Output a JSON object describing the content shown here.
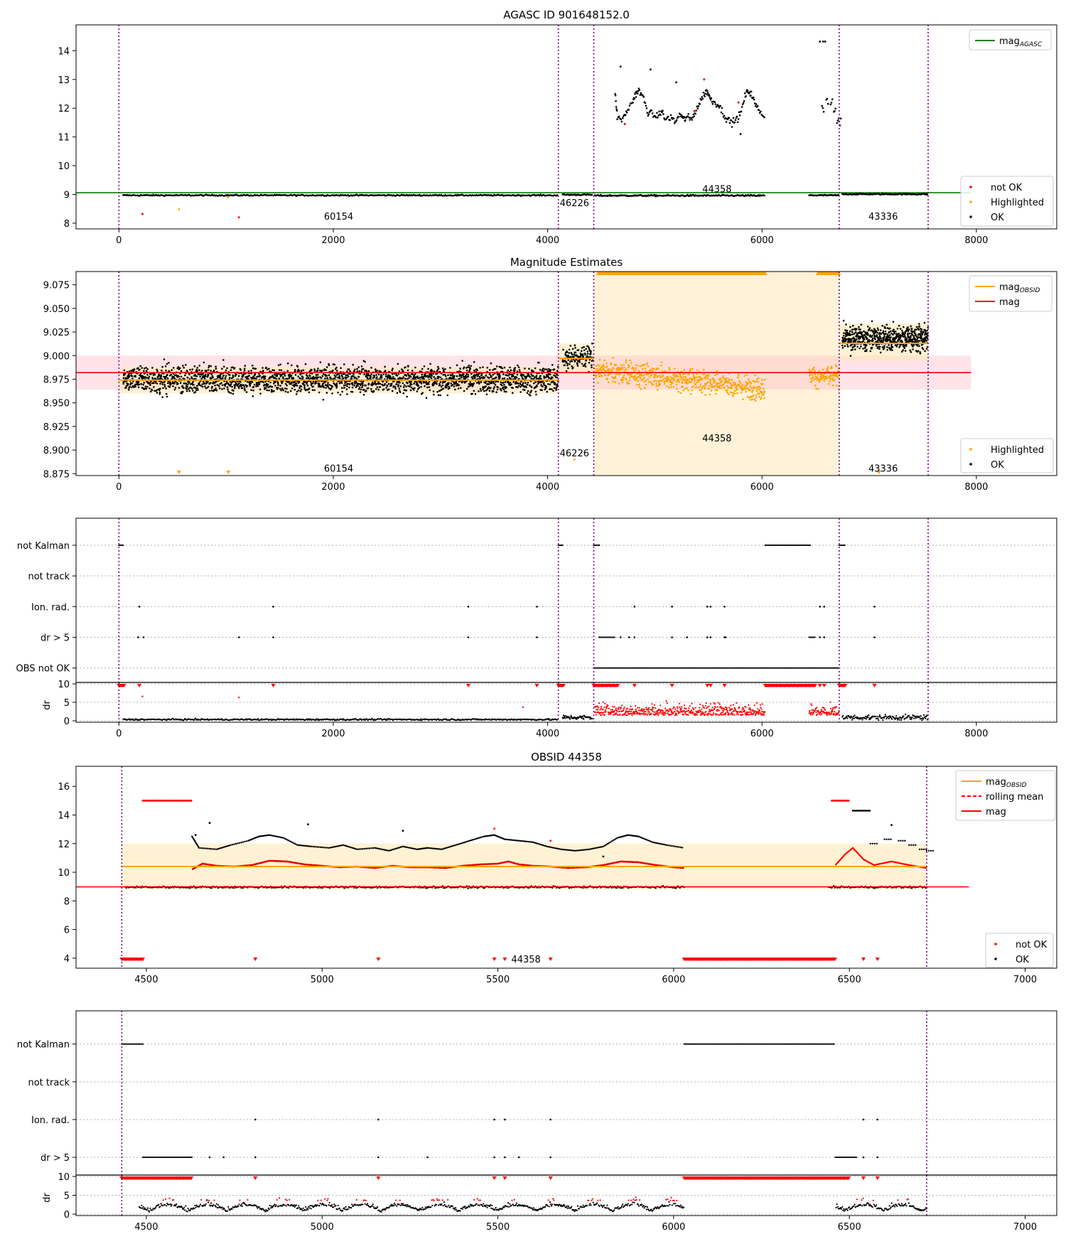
{
  "figure": {
    "titles": {
      "top": "AGASC ID 901648152.0",
      "mag": "Magnitude Estimates",
      "obsid": "OBSID 44358"
    },
    "colors": {
      "ok": "#000000",
      "not_ok": "#ff0000",
      "highlighted": "#ffa500",
      "agasc": "#008000",
      "obsid": "#ffa500",
      "mag": "#ff0000",
      "boundary": "#800080",
      "grid": "#b0b0b0",
      "mag_band": "#ffc0cb",
      "obs_band": "#ffe7b8"
    }
  },
  "chart_data": [
    {
      "id": "agasc",
      "type": "scatter",
      "title": "AGASC ID 901648152.0",
      "xlim": [
        -400,
        8750
      ],
      "ylim": [
        7.8,
        14.9
      ],
      "xticks": [
        0,
        2000,
        4000,
        6000,
        8000
      ],
      "yticks": [
        8,
        9,
        10,
        11,
        12,
        13,
        14
      ],
      "boundaries": [
        0,
        4100,
        4430,
        6720,
        7550
      ],
      "obsid_labels": [
        {
          "text": "60154",
          "x": 2050,
          "y": 8.25
        },
        {
          "text": "46226",
          "x": 4250,
          "y": 8.72
        },
        {
          "text": "44358",
          "x": 5580,
          "y": 9.2
        },
        {
          "text": "43336",
          "x": 7130,
          "y": 8.25
        }
      ],
      "lines": [
        {
          "name": "magAGASC",
          "label_base": "mag",
          "label_sub": "AGASC",
          "color": "#008000",
          "x": [
            -400,
            7950
          ],
          "y": [
            9.06,
            9.06
          ]
        }
      ],
      "segments_ok": [
        {
          "x0": 40,
          "x1": 4100,
          "y": 8.97,
          "spread": 0.05,
          "n": 420
        },
        {
          "x0": 4140,
          "x1": 4420,
          "y": 8.99,
          "spread": 0.05,
          "n": 40
        },
        {
          "x0": 4440,
          "x1": 6030,
          "y": 8.96,
          "spread": 0.06,
          "n": 200
        },
        {
          "x0": 6440,
          "x1": 6720,
          "y": 8.97,
          "spread": 0.05,
          "n": 40
        },
        {
          "x0": 6750,
          "x1": 7550,
          "y": 9.01,
          "spread": 0.05,
          "n": 110
        }
      ],
      "bright_curve": [
        [
          4630,
          12.5
        ],
        [
          4650,
          11.7
        ],
        [
          4700,
          11.6
        ],
        [
          4740,
          11.9
        ],
        [
          4790,
          12.2
        ],
        [
          4820,
          12.5
        ],
        [
          4850,
          12.6
        ],
        [
          4890,
          12.4
        ],
        [
          4930,
          11.9
        ],
        [
          4970,
          11.8
        ],
        [
          5020,
          11.7
        ],
        [
          5060,
          11.9
        ],
        [
          5100,
          11.6
        ],
        [
          5150,
          11.7
        ],
        [
          5190,
          11.5
        ],
        [
          5230,
          11.8
        ],
        [
          5270,
          11.6
        ],
        [
          5300,
          11.7
        ],
        [
          5340,
          11.6
        ],
        [
          5380,
          11.9
        ],
        [
          5420,
          12.2
        ],
        [
          5460,
          12.5
        ],
        [
          5490,
          12.6
        ],
        [
          5520,
          12.3
        ],
        [
          5560,
          12.2
        ],
        [
          5600,
          12.1
        ],
        [
          5640,
          11.8
        ],
        [
          5680,
          11.6
        ],
        [
          5720,
          11.5
        ],
        [
          5760,
          11.6
        ],
        [
          5800,
          11.8
        ],
        [
          5840,
          12.4
        ],
        [
          5870,
          12.6
        ],
        [
          5900,
          12.5
        ],
        [
          5940,
          12.1
        ],
        [
          5980,
          11.9
        ],
        [
          6030,
          11.7
        ]
      ],
      "bright_tail": [
        [
          6560,
          12.0
        ],
        [
          6600,
          12.3
        ],
        [
          6640,
          12.2
        ],
        [
          6670,
          11.9
        ],
        [
          6700,
          11.6
        ],
        [
          6720,
          11.5
        ]
      ],
      "extra_ok": [
        [
          4680,
          13.45
        ],
        [
          4960,
          13.35
        ],
        [
          5200,
          12.9
        ],
        [
          5800,
          11.1
        ],
        [
          6540,
          14.32
        ],
        [
          6570,
          14.32
        ],
        [
          6590,
          14.32
        ]
      ],
      "not_ok": [
        [
          220,
          8.32
        ],
        [
          1120,
          8.2
        ],
        [
          4720,
          11.45
        ],
        [
          5370,
          11.9
        ],
        [
          5460,
          13.0
        ],
        [
          5780,
          12.2
        ]
      ],
      "highlighted": [
        [
          560,
          8.48
        ],
        [
          1020,
          8.9
        ]
      ],
      "legend": [
        "not OK",
        "Highlighted",
        "OK"
      ]
    },
    {
      "id": "mag",
      "type": "scatter",
      "title": "Magnitude Estimates",
      "xlim": [
        -400,
        8750
      ],
      "ylim": [
        8.873,
        9.089
      ],
      "xticks": [
        0,
        2000,
        4000,
        6000,
        8000
      ],
      "yticks": [
        8.875,
        8.9,
        8.925,
        8.95,
        8.975,
        9.0,
        9.025,
        9.05,
        9.075
      ],
      "ytick_labels": [
        "8.875",
        "8.900",
        "8.925",
        "8.950",
        "8.975",
        "9.000",
        "9.025",
        "9.050",
        "9.075"
      ],
      "boundaries": [
        0,
        4100,
        4430,
        6720,
        7550
      ],
      "obsid_labels": [
        {
          "text": "60154",
          "x": 2050,
          "y": 8.881
        },
        {
          "text": "46226",
          "x": 4250,
          "y": 8.897
        },
        {
          "text": "44358",
          "x": 5580,
          "y": 8.913
        },
        {
          "text": "43336",
          "x": 7130,
          "y": 8.881
        }
      ],
      "mag_value": 8.982,
      "mag_band": [
        8.964,
        9.0
      ],
      "obs_band_x": [
        4430,
        6720
      ],
      "obsid_steps": [
        {
          "x0": 0,
          "x1": 4100,
          "y": 8.974,
          "band": [
            8.96,
            8.988
          ]
        },
        {
          "x0": 4100,
          "x1": 4430,
          "y": 8.997,
          "band": [
            8.98,
            9.013
          ]
        },
        {
          "x0": 6720,
          "x1": 7550,
          "y": 9.013,
          "band": [
            8.995,
            9.034
          ]
        }
      ],
      "clipped_top_x": [
        [
          4470,
          6030
        ],
        [
          6520,
          6720
        ]
      ],
      "segments": [
        {
          "kind": "ok",
          "x0": 40,
          "x1": 4100,
          "center": 8.975,
          "spread": 0.016,
          "n": 2200
        },
        {
          "kind": "ok",
          "x0": 4140,
          "x1": 4420,
          "center": 8.998,
          "spread": 0.013,
          "n": 140
        },
        {
          "kind": "hl",
          "x0": 4440,
          "x1": 6030,
          "center": 8.985,
          "trend": -0.02,
          "spread": 0.014,
          "n": 620
        },
        {
          "kind": "hl",
          "x0": 6440,
          "x1": 6720,
          "center": 8.978,
          "trend": 0.0,
          "spread": 0.012,
          "n": 110
        },
        {
          "kind": "ok",
          "x0": 6750,
          "x1": 7550,
          "center": 9.018,
          "spread": 0.015,
          "n": 620
        }
      ],
      "highlighted_outliers": [
        [
          560,
          8.875
        ],
        [
          1020,
          8.878
        ],
        [
          7090,
          8.876
        ],
        [
          7090,
          8.88
        ],
        [
          4250,
          8.89
        ]
      ],
      "lines": [
        {
          "name": "magOBSID",
          "label_base": "mag",
          "label_sub": "OBSID",
          "color": "#ffa500"
        },
        {
          "name": "mag",
          "label_base": "mag",
          "label_sub": "",
          "color": "#ff0000"
        }
      ],
      "legend": [
        "Highlighted",
        "OK"
      ]
    },
    {
      "id": "flags",
      "type": "scatter",
      "xlim": [
        -400,
        8750
      ],
      "categories": [
        "not Kalman",
        "not track",
        "Ion. rad.",
        "dr > 5",
        "OBS not OK"
      ],
      "boundaries": [
        0,
        4100,
        4430,
        6720,
        7550
      ],
      "runs": {
        "not Kalman": [
          [
            0,
            50
          ],
          [
            4100,
            4150
          ],
          [
            4430,
            4490
          ],
          [
            6030,
            6460
          ],
          [
            6720,
            6780
          ]
        ],
        "not track": [],
        "Ion. rad.": [
          [
            190
          ],
          [
            1440
          ],
          [
            3260
          ],
          [
            3900
          ],
          [
            4810
          ],
          [
            5160
          ],
          [
            5490
          ],
          [
            5520
          ],
          [
            5650
          ],
          [
            6540
          ],
          [
            6580
          ],
          [
            7050
          ]
        ],
        "dr > 5": [
          [
            180
          ],
          [
            230
          ],
          [
            1120
          ],
          [
            1440
          ],
          [
            3260
          ],
          [
            3900
          ],
          [
            4480,
            4630
          ],
          [
            4680
          ],
          [
            4760
          ],
          [
            4810
          ],
          [
            5160
          ],
          [
            5300
          ],
          [
            5490
          ],
          [
            5520
          ],
          [
            5650
          ],
          [
            5660
          ],
          [
            6440,
            6500
          ],
          [
            6540
          ],
          [
            6580
          ],
          [
            7050
          ]
        ],
        "OBS not OK": [
          [
            4430,
            6720
          ]
        ]
      }
    },
    {
      "id": "dr_full",
      "type": "scatter",
      "ylabel": "dr",
      "xlim": [
        -400,
        8750
      ],
      "ylim": [
        0,
        10
      ],
      "yticks": [
        0,
        5,
        10
      ],
      "xticks": [
        0,
        2000,
        4000,
        6000,
        8000
      ],
      "boundaries": [
        0,
        4100,
        4430,
        6720,
        7550
      ],
      "ok_segments": [
        [
          40,
          4100,
          0.35,
          0.2,
          500
        ],
        [
          4140,
          4420,
          0.9,
          0.6,
          60
        ],
        [
          6750,
          7550,
          0.9,
          0.7,
          140
        ]
      ],
      "red_segments": [
        [
          4440,
          6030,
          1.5,
          1.4,
          520
        ],
        [
          6440,
          6720,
          1.5,
          1.3,
          90
        ]
      ],
      "red_outliers": [
        [
          220,
          6.6
        ],
        [
          1120,
          6.3
        ],
        [
          3770,
          3.7
        ]
      ],
      "clipped": [
        [
          0,
          50
        ],
        [
          190
        ],
        [
          1440
        ],
        [
          3260
        ],
        [
          3900
        ],
        [
          4100,
          4150
        ],
        [
          4430,
          4660
        ],
        [
          4810
        ],
        [
          5160
        ],
        [
          5490
        ],
        [
          5520
        ],
        [
          5650
        ],
        [
          6030,
          6500
        ],
        [
          6540
        ],
        [
          6580
        ],
        [
          6720,
          6780
        ],
        [
          7050
        ]
      ]
    },
    {
      "id": "obsid",
      "type": "line",
      "title": "OBSID 44358",
      "xlim": [
        4300,
        7090
      ],
      "ylim": [
        3.3,
        17.4
      ],
      "xticks": [
        4500,
        5000,
        5500,
        6000,
        6500,
        7000
      ],
      "yticks": [
        4,
        6,
        8,
        10,
        12,
        14,
        16
      ],
      "boundaries": [
        4430,
        6720
      ],
      "obsid_label": {
        "text": "44358",
        "x": 5580,
        "y": 3.95
      },
      "mag_value": 8.98,
      "mag_band": [
        8.96,
        9.0
      ],
      "obsid_value": 10.4,
      "obs_band": [
        8.8,
        12.0
      ],
      "obsid_band_x": [
        4430,
        6720
      ],
      "mag_line_x": [
        4300,
        6840
      ],
      "rolling_mean": [
        [
          4630,
          10.2
        ],
        [
          4660,
          10.6
        ],
        [
          4700,
          10.45
        ],
        [
          4750,
          10.4
        ],
        [
          4800,
          10.5
        ],
        [
          4850,
          10.8
        ],
        [
          4900,
          10.75
        ],
        [
          4950,
          10.55
        ],
        [
          5000,
          10.45
        ],
        [
          5050,
          10.35
        ],
        [
          5100,
          10.4
        ],
        [
          5150,
          10.3
        ],
        [
          5200,
          10.45
        ],
        [
          5250,
          10.35
        ],
        [
          5300,
          10.35
        ],
        [
          5350,
          10.3
        ],
        [
          5400,
          10.45
        ],
        [
          5450,
          10.55
        ],
        [
          5500,
          10.6
        ],
        [
          5530,
          10.75
        ],
        [
          5560,
          10.55
        ],
        [
          5600,
          10.45
        ],
        [
          5650,
          10.4
        ],
        [
          5700,
          10.3
        ],
        [
          5750,
          10.35
        ],
        [
          5800,
          10.5
        ],
        [
          5850,
          10.75
        ],
        [
          5900,
          10.7
        ],
        [
          5950,
          10.5
        ],
        [
          6000,
          10.35
        ],
        [
          6030,
          10.3
        ]
      ],
      "rolling_mean_tail": [
        [
          6460,
          10.5
        ],
        [
          6490,
          11.3
        ],
        [
          6510,
          11.7
        ],
        [
          6540,
          10.9
        ],
        [
          6570,
          10.5
        ],
        [
          6620,
          10.75
        ],
        [
          6670,
          10.5
        ],
        [
          6720,
          10.3
        ]
      ],
      "legend": [
        {
          "label_base": "mag",
          "label_sub": "OBSID",
          "style": "solid",
          "color": "#ffa500"
        },
        {
          "label_base": "rolling mean",
          "label_sub": "",
          "style": "dashed",
          "color": "#ff0000"
        },
        {
          "label_base": "mag",
          "label_sub": "",
          "style": "solid",
          "color": "#ff0000"
        }
      ],
      "legend_points": [
        "not OK",
        "OK"
      ],
      "red_clipped": [
        [
          4430,
          4490
        ],
        [
          4810
        ],
        [
          5160
        ],
        [
          5490
        ],
        [
          5520
        ],
        [
          5650
        ],
        [
          6030,
          6460
        ],
        [
          6540
        ],
        [
          6580
        ]
      ],
      "red_top_runs": [
        [
          4490,
          4630
        ],
        [
          6450,
          6500
        ]
      ],
      "black_top_run": [
        6510,
        6560
      ],
      "extra_ok": [
        [
          4640,
          12.6
        ],
        [
          4680,
          13.45
        ],
        [
          4960,
          13.35
        ],
        [
          5230,
          12.9
        ],
        [
          5800,
          11.1
        ],
        [
          6620,
          13.3
        ]
      ],
      "extra_red": [
        [
          5490,
          13.05
        ],
        [
          5650,
          12.2
        ]
      ]
    },
    {
      "id": "obsid_flags",
      "type": "scatter",
      "xlim": [
        4300,
        7090
      ],
      "categories": [
        "not Kalman",
        "not track",
        "Ion. rad.",
        "dr > 5"
      ],
      "boundaries": [
        4430,
        6720
      ],
      "runs": {
        "not Kalman": [
          [
            4430,
            4490
          ],
          [
            6030,
            6460
          ]
        ],
        "not track": [],
        "Ion. rad.": [
          [
            4810
          ],
          [
            5160
          ],
          [
            5490
          ],
          [
            5520
          ],
          [
            5650
          ],
          [
            6540
          ],
          [
            6580
          ]
        ],
        "dr > 5": [
          [
            4490,
            4630
          ],
          [
            4680
          ],
          [
            4720
          ],
          [
            4810
          ],
          [
            5160
          ],
          [
            5300
          ],
          [
            5490
          ],
          [
            5520
          ],
          [
            5560
          ],
          [
            5650
          ],
          [
            6460,
            6520
          ],
          [
            6540
          ],
          [
            6580
          ]
        ]
      }
    },
    {
      "id": "dr_obsid",
      "type": "scatter",
      "ylabel": "dr",
      "xlim": [
        4300,
        7090
      ],
      "ylim": [
        0,
        10
      ],
      "yticks": [
        0,
        5,
        10
      ],
      "xticks": [
        4500,
        5000,
        5500,
        6000,
        6500,
        7000
      ],
      "boundaries": [
        4430,
        6720
      ],
      "clipped": [
        [
          4430,
          4630
        ],
        [
          4810
        ],
        [
          5160
        ],
        [
          5490
        ],
        [
          5520
        ],
        [
          5650
        ],
        [
          6030,
          6500
        ],
        [
          6540
        ],
        [
          6580
        ]
      ]
    }
  ]
}
